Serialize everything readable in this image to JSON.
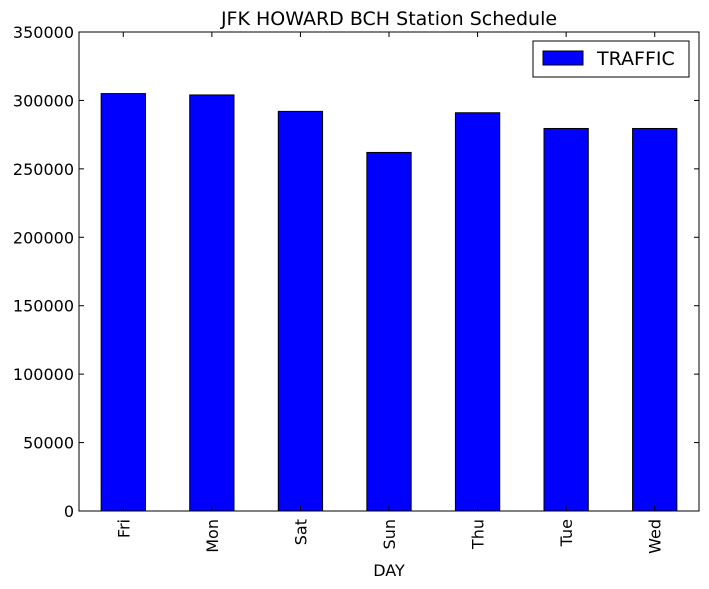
{
  "chart_data": {
    "type": "bar",
    "title": "JFK HOWARD BCH Station Schedule",
    "xlabel": "DAY",
    "ylabel": "",
    "categories": [
      "Fri",
      "Mon",
      "Sat",
      "Sun",
      "Thu",
      "Tue",
      "Wed"
    ],
    "series": [
      {
        "name": "TRAFFIC",
        "values": [
          305000,
          304000,
          292000,
          262000,
          291000,
          279500,
          279500
        ]
      }
    ],
    "ylim": [
      0,
      350000
    ],
    "yticks": [
      "0",
      "50000",
      "100000",
      "150000",
      "200000",
      "250000",
      "300000",
      "350000"
    ],
    "grid": false,
    "legend_position": "top-right",
    "colors": {
      "bar": "#0000ff",
      "edge": "#000000"
    }
  }
}
